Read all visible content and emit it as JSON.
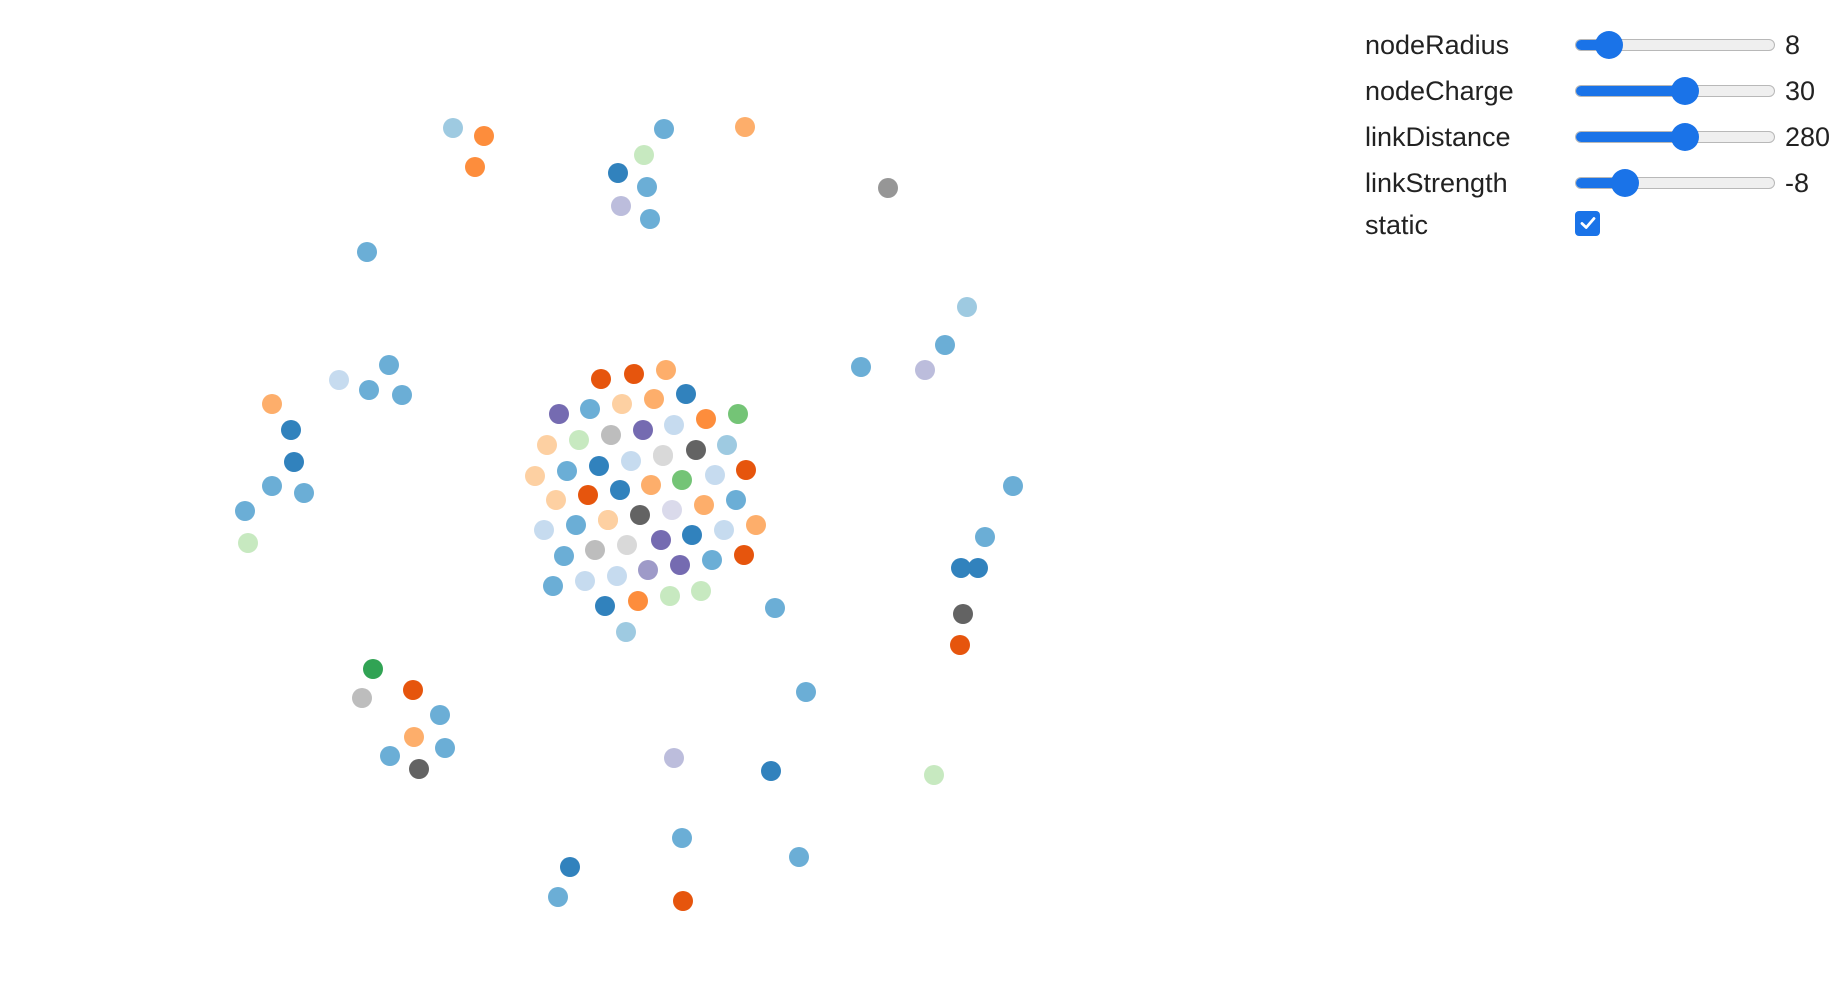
{
  "controls": [
    {
      "label": "nodeRadius",
      "value": "8",
      "level": 0.17
    },
    {
      "label": "nodeCharge",
      "value": "30",
      "level": 0.55
    },
    {
      "label": "linkDistance",
      "value": "280",
      "level": 0.55
    },
    {
      "label": "linkStrength",
      "value": "-8",
      "level": 0.25
    }
  ],
  "static_toggle": {
    "label": "static",
    "checked": true
  },
  "colors": {
    "accent": "#1a73e8",
    "node_palette": {
      "b1": "#3182bd",
      "b2": "#6baed6",
      "b3": "#9ecae1",
      "b4": "#c6dbef",
      "o1": "#e6550d",
      "o2": "#fd8d3c",
      "o3": "#fdae6b",
      "o4": "#fdd0a2",
      "g1": "#31a354",
      "g2": "#74c476",
      "g4": "#c7e9c0",
      "p1": "#756bb1",
      "p2": "#9e9ac8",
      "p3": "#bcbddc",
      "p4": "#dadaeb",
      "k1": "#636363",
      "k2": "#969696",
      "k3": "#bdbdbd",
      "k4": "#d9d9d9"
    }
  },
  "graph": {
    "node_colors": [
      "b3",
      "o2",
      "o2",
      "b2",
      "g4",
      "b1",
      "b2",
      "p3",
      "b2",
      "o3",
      "k2",
      "b2",
      "b2",
      "b4",
      "b2",
      "b2",
      "o3",
      "b1",
      "b1",
      "b2",
      "b2",
      "b2",
      "g4",
      "b3",
      "b2",
      "b2",
      "p3",
      "b2",
      "b2",
      "b1",
      "k1",
      "b1",
      "o1",
      "o1",
      "o1",
      "o3",
      "b1",
      "p1",
      "b2",
      "o4",
      "o3",
      "o2",
      "g2",
      "o4",
      "g4",
      "k3",
      "p1",
      "b4",
      "k4",
      "k1",
      "b3",
      "o4",
      "b2",
      "b1",
      "b4",
      "k4",
      "o3",
      "b4",
      "g2",
      "o1",
      "o4",
      "o1",
      "b1",
      "o4",
      "k1",
      "p4",
      "o3",
      "b2",
      "b4",
      "b2",
      "o4",
      "k3",
      "k4",
      "p1",
      "b1",
      "b4",
      "o3",
      "b2",
      "o1",
      "p2",
      "p1",
      "b2",
      "b2",
      "b4",
      "b4",
      "b1",
      "o2",
      "g4",
      "g4",
      "b3",
      "b2",
      "g1",
      "o1",
      "k3",
      "b2",
      "o3",
      "b2",
      "b2",
      "k1",
      "b2",
      "p3",
      "b1",
      "g4",
      "b2",
      "b2",
      "b1",
      "b2",
      "o1"
    ]
  }
}
